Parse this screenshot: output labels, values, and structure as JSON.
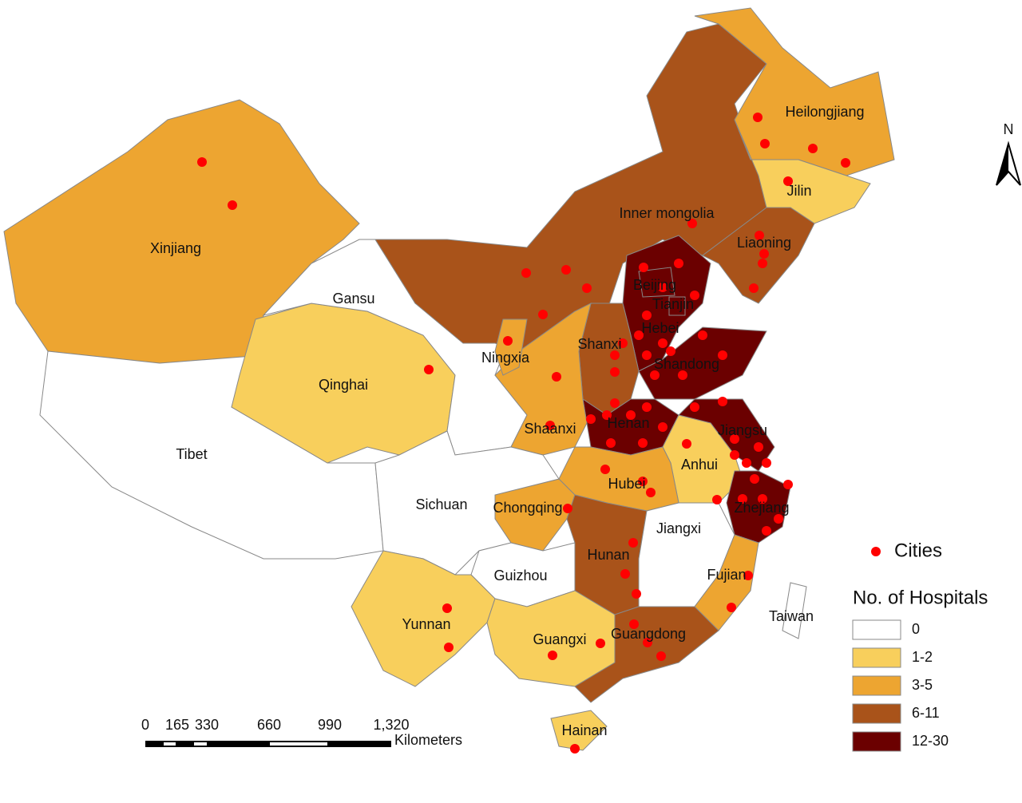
{
  "compass": "N",
  "legend": {
    "cities": "Cities",
    "title": "No. of Hospitals",
    "classes": [
      {
        "label": "0",
        "color": "#ffffff"
      },
      {
        "label": "1-2",
        "color": "#f8cf5c"
      },
      {
        "label": "3-5",
        "color": "#eda531"
      },
      {
        "label": "6-11",
        "color": "#a9531a"
      },
      {
        "label": "12-30",
        "color": "#6b0000"
      }
    ]
  },
  "scale_bar": {
    "ticks": [
      "0",
      "165",
      "330",
      "660",
      "990",
      "1,320"
    ],
    "unit": "Kilometers"
  },
  "provinces": [
    {
      "name": "Xinjiang",
      "class": "3-5"
    },
    {
      "name": "Tibet",
      "class": "0"
    },
    {
      "name": "Qinghai",
      "class": "1-2"
    },
    {
      "name": "Gansu",
      "class": "0"
    },
    {
      "name": "Inner mongolia",
      "class": "6-11"
    },
    {
      "name": "Heilongjiang",
      "class": "3-5"
    },
    {
      "name": "Jilin",
      "class": "1-2"
    },
    {
      "name": "Liaoning",
      "class": "6-11"
    },
    {
      "name": "Hebei",
      "class": "12-30"
    },
    {
      "name": "Shanxi",
      "class": "6-11"
    },
    {
      "name": "Shandong",
      "class": "12-30"
    },
    {
      "name": "Henan",
      "class": "12-30"
    },
    {
      "name": "Jiangsu",
      "class": "12-30"
    },
    {
      "name": "Anhui",
      "class": "1-2"
    },
    {
      "name": "Zhejiang",
      "class": "12-30"
    },
    {
      "name": "Shaanxi",
      "class": "3-5"
    },
    {
      "name": "Ningxia",
      "class": "3-5"
    },
    {
      "name": "Hubei",
      "class": "3-5"
    },
    {
      "name": "Chongqing",
      "class": "3-5"
    },
    {
      "name": "Sichuan",
      "class": "0"
    },
    {
      "name": "Guizhou",
      "class": "0"
    },
    {
      "name": "Hunan",
      "class": "6-11"
    },
    {
      "name": "Jiangxi",
      "class": "0"
    },
    {
      "name": "Fujian",
      "class": "3-5"
    },
    {
      "name": "Yunnan",
      "class": "1-2"
    },
    {
      "name": "Guangxi",
      "class": "1-2"
    },
    {
      "name": "Guangdong",
      "class": "6-11"
    },
    {
      "name": "Hainan",
      "class": "1-2"
    },
    {
      "name": "Taiwan",
      "class": "0"
    },
    {
      "name": "Beijing",
      "class": "12-30"
    },
    {
      "name": "Tianjin",
      "class": "12-30"
    }
  ]
}
